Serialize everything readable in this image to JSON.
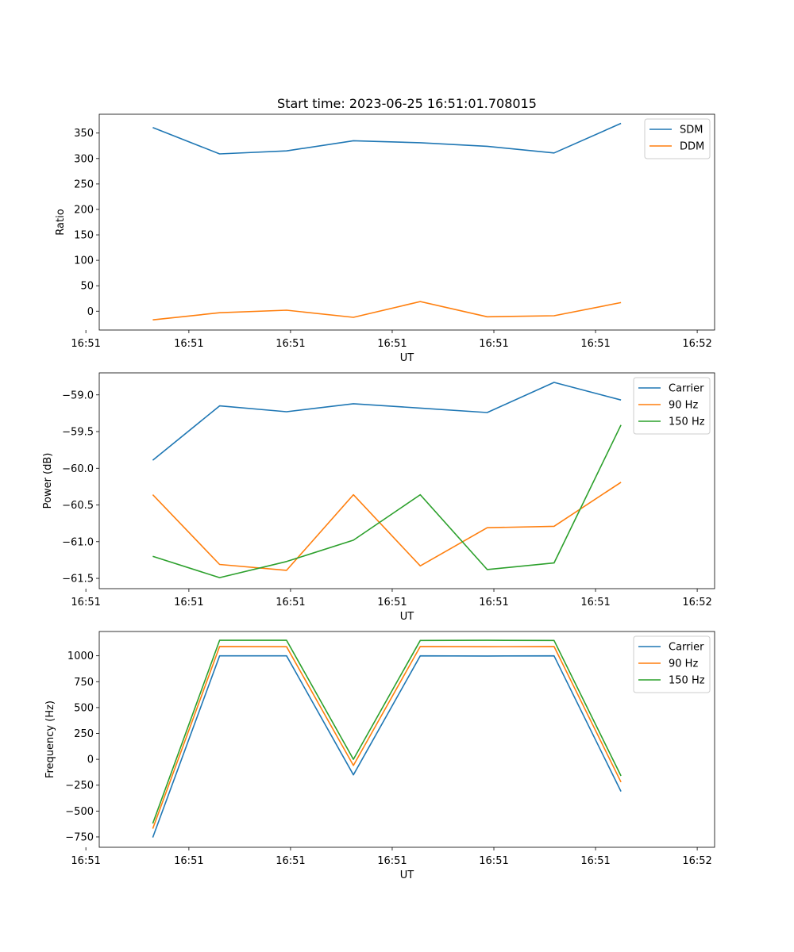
{
  "figure": {
    "title": "Start time: 2023-06-25 16:51:01.708015"
  },
  "chart_data": [
    {
      "type": "line",
      "title": "Start time: 2023-06-25 16:51:01.708015",
      "xlabel": "UT",
      "ylabel": "Ratio",
      "x": [
        1,
        2,
        3,
        4,
        5,
        6,
        7,
        8
      ],
      "xlim": [
        0.2,
        9.4
      ],
      "x_ticks": [
        {
          "pos": 0,
          "label": "16:51"
        },
        {
          "pos": 1.54,
          "label": "16:51"
        },
        {
          "pos": 3.06,
          "label": "16:51"
        },
        {
          "pos": 4.58,
          "label": "16:51"
        },
        {
          "pos": 6.1,
          "label": "16:51"
        },
        {
          "pos": 7.62,
          "label": "16:51"
        },
        {
          "pos": 9.14,
          "label": "16:52"
        }
      ],
      "ylim": [
        -37,
        387
      ],
      "y_ticks": [
        0,
        50,
        100,
        150,
        200,
        250,
        300,
        350
      ],
      "y_tick_labels": [
        "0",
        "50",
        "100",
        "150",
        "200",
        "250",
        "300",
        "350"
      ],
      "legend": "upper-right",
      "grid": false,
      "series": [
        {
          "name": "SDM",
          "color": "#1f77b4",
          "values": [
            361,
            309,
            315,
            335,
            331,
            324,
            311,
            369
          ]
        },
        {
          "name": "DDM",
          "color": "#ff7f0e",
          "values": [
            -17,
            -3,
            2,
            -12,
            19,
            -11,
            -9,
            17
          ]
        }
      ]
    },
    {
      "type": "line",
      "title": "",
      "xlabel": "UT",
      "ylabel": "Power (dB)",
      "x": [
        1,
        2,
        3,
        4,
        5,
        6,
        7,
        8
      ],
      "xlim": [
        0.2,
        9.4
      ],
      "x_ticks": [
        {
          "pos": 0,
          "label": "16:51"
        },
        {
          "pos": 1.54,
          "label": "16:51"
        },
        {
          "pos": 3.06,
          "label": "16:51"
        },
        {
          "pos": 4.58,
          "label": "16:51"
        },
        {
          "pos": 6.1,
          "label": "16:51"
        },
        {
          "pos": 7.62,
          "label": "16:51"
        },
        {
          "pos": 9.14,
          "label": "16:52"
        }
      ],
      "ylim": [
        -61.64,
        -58.7
      ],
      "y_ticks": [
        -61.5,
        -61.0,
        -60.5,
        -60.0,
        -59.5,
        -59.0
      ],
      "y_tick_labels": [
        "−61.5",
        "−61.0",
        "−60.5",
        "−60.0",
        "−59.5",
        "−59.0"
      ],
      "legend": "upper-right",
      "grid": false,
      "series": [
        {
          "name": "Carrier",
          "color": "#1f77b4",
          "values": [
            -59.89,
            -59.15,
            -59.23,
            -59.12,
            -59.18,
            -59.24,
            -58.83,
            -59.07
          ]
        },
        {
          "name": "90 Hz",
          "color": "#ff7f0e",
          "values": [
            -60.36,
            -61.31,
            -61.39,
            -60.36,
            -61.33,
            -60.81,
            -60.79,
            -60.19
          ]
        },
        {
          "name": "150 Hz",
          "color": "#2ca02c",
          "values": [
            -61.2,
            -61.49,
            -61.27,
            -60.98,
            -60.36,
            -61.38,
            -61.29,
            -59.41
          ]
        }
      ]
    },
    {
      "type": "line",
      "title": "",
      "xlabel": "UT",
      "ylabel": "Frequency (Hz)",
      "x": [
        1,
        2,
        3,
        4,
        5,
        6,
        7,
        8
      ],
      "xlim": [
        0.2,
        9.4
      ],
      "x_ticks": [
        {
          "pos": 0,
          "label": "16:51"
        },
        {
          "pos": 1.54,
          "label": "16:51"
        },
        {
          "pos": 3.06,
          "label": "16:51"
        },
        {
          "pos": 4.58,
          "label": "16:51"
        },
        {
          "pos": 6.1,
          "label": "16:51"
        },
        {
          "pos": 7.62,
          "label": "16:51"
        },
        {
          "pos": 9.14,
          "label": "16:52"
        }
      ],
      "ylim": [
        -850,
        1235
      ],
      "y_ticks": [
        -750,
        -500,
        -250,
        0,
        250,
        500,
        750,
        1000
      ],
      "y_tick_labels": [
        "−750",
        "−500",
        "−250",
        "0",
        "250",
        "500",
        "750",
        "1000"
      ],
      "legend": "upper-right",
      "grid": false,
      "series": [
        {
          "name": "Carrier",
          "color": "#1f77b4",
          "values": [
            -755,
            1000,
            1000,
            -150,
            1000,
            998,
            1000,
            -310
          ]
        },
        {
          "name": "90 Hz",
          "color": "#ff7f0e",
          "values": [
            -670,
            1090,
            1088,
            -60,
            1090,
            1088,
            1090,
            -220
          ]
        },
        {
          "name": "150 Hz",
          "color": "#2ca02c",
          "values": [
            -620,
            1150,
            1150,
            0,
            1148,
            1150,
            1148,
            -160
          ]
        }
      ]
    }
  ]
}
